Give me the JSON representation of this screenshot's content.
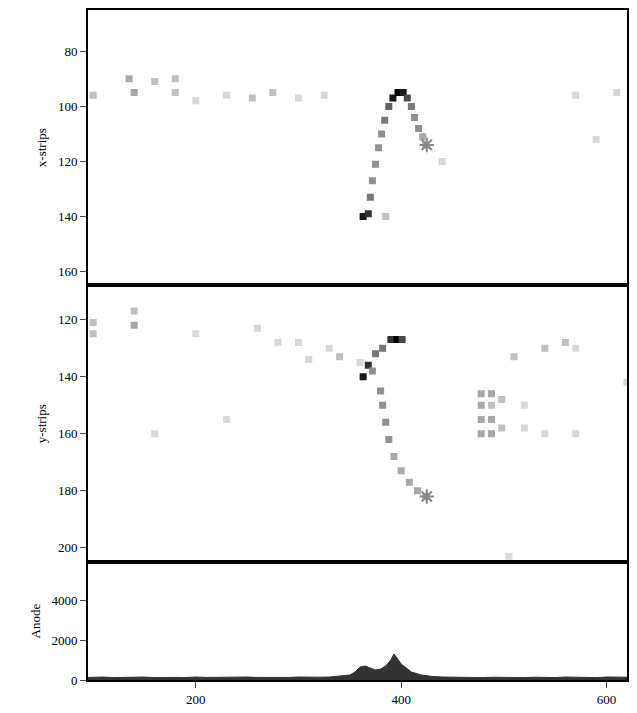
{
  "chart_data": [
    {
      "type": "heatmap",
      "ylabel": "x-strips",
      "xlim": [
        95,
        620
      ],
      "ylim": [
        165,
        65
      ],
      "yticks": [
        80,
        100,
        120,
        140,
        160
      ],
      "tick_labels": "y",
      "cells": [
        [
          363,
          140,
          9
        ],
        [
          368,
          139,
          8
        ],
        [
          370,
          133,
          5
        ],
        [
          372,
          127,
          4
        ],
        [
          375,
          121,
          4
        ],
        [
          378,
          115,
          4
        ],
        [
          381,
          110,
          4
        ],
        [
          384,
          105,
          5
        ],
        [
          388,
          100,
          6
        ],
        [
          392,
          97,
          9
        ],
        [
          397,
          95,
          10
        ],
        [
          402,
          95,
          9
        ],
        [
          406,
          97,
          7
        ],
        [
          410,
          100,
          5
        ],
        [
          413,
          104,
          4
        ],
        [
          417,
          108,
          4
        ],
        [
          421,
          111,
          3
        ],
        [
          424,
          114,
          3
        ],
        [
          100,
          96,
          2
        ],
        [
          135,
          90,
          3
        ],
        [
          140,
          95,
          3
        ],
        [
          160,
          91,
          2
        ],
        [
          180,
          90,
          2
        ],
        [
          180,
          95,
          2
        ],
        [
          200,
          98,
          1
        ],
        [
          230,
          96,
          1
        ],
        [
          255,
          97,
          2
        ],
        [
          275,
          95,
          2
        ],
        [
          300,
          97,
          1
        ],
        [
          325,
          96,
          1
        ],
        [
          440,
          120,
          1
        ],
        [
          570,
          96,
          1
        ],
        [
          590,
          112,
          1
        ],
        [
          610,
          95,
          1
        ],
        [
          385,
          140,
          2
        ]
      ],
      "series": [
        {
          "type": "scatter",
          "marker": "asterisk",
          "color": "#888888",
          "x": [
            425
          ],
          "values": [
            114
          ]
        }
      ]
    },
    {
      "type": "heatmap",
      "ylabel": "y-strips",
      "xlim": [
        95,
        620
      ],
      "ylim": [
        205,
        108
      ],
      "yticks": [
        120,
        140,
        160,
        180,
        200
      ],
      "tick_labels": "y",
      "cells": [
        [
          363,
          140,
          9
        ],
        [
          368,
          136,
          8
        ],
        [
          375,
          132,
          5
        ],
        [
          382,
          130,
          5
        ],
        [
          390,
          127,
          8
        ],
        [
          396,
          127,
          10
        ],
        [
          401,
          127,
          7
        ],
        [
          372,
          138,
          4
        ],
        [
          380,
          145,
          4
        ],
        [
          382,
          150,
          4
        ],
        [
          385,
          156,
          4
        ],
        [
          388,
          162,
          4
        ],
        [
          393,
          168,
          3
        ],
        [
          400,
          173,
          3
        ],
        [
          408,
          177,
          3
        ],
        [
          416,
          180,
          3
        ],
        [
          424,
          182,
          3
        ],
        [
          478,
          146,
          3
        ],
        [
          478,
          150,
          3
        ],
        [
          478,
          155,
          3
        ],
        [
          478,
          160,
          3
        ],
        [
          488,
          146,
          3
        ],
        [
          488,
          150,
          2
        ],
        [
          488,
          155,
          3
        ],
        [
          488,
          160,
          3
        ],
        [
          498,
          148,
          2
        ],
        [
          498,
          158,
          2
        ],
        [
          520,
          150,
          1
        ],
        [
          520,
          158,
          1
        ],
        [
          540,
          160,
          1
        ],
        [
          570,
          160,
          1
        ],
        [
          100,
          121,
          2
        ],
        [
          100,
          125,
          2
        ],
        [
          140,
          117,
          2
        ],
        [
          140,
          122,
          3
        ],
        [
          200,
          125,
          1
        ],
        [
          260,
          123,
          1
        ],
        [
          280,
          128,
          1
        ],
        [
          300,
          128,
          1
        ],
        [
          310,
          134,
          1
        ],
        [
          330,
          130,
          1
        ],
        [
          340,
          133,
          2
        ],
        [
          360,
          135,
          1
        ],
        [
          160,
          160,
          1
        ],
        [
          230,
          155,
          1
        ],
        [
          510,
          133,
          2
        ],
        [
          540,
          130,
          2
        ],
        [
          560,
          128,
          2
        ],
        [
          570,
          130,
          1
        ],
        [
          620,
          142,
          1
        ],
        [
          505,
          203,
          1
        ]
      ],
      "series": [
        {
          "type": "scatter",
          "marker": "asterisk",
          "color": "#888888",
          "x": [
            425
          ],
          "values": [
            182
          ]
        }
      ]
    },
    {
      "type": "area",
      "ylabel": "Anode",
      "xlim": [
        95,
        620
      ],
      "ylim": [
        0,
        5900
      ],
      "xticks": [
        200,
        400,
        600
      ],
      "yticks": [
        0,
        2000,
        4000
      ],
      "color": "#333333",
      "x": [
        95,
        110,
        120,
        130,
        140,
        150,
        160,
        170,
        180,
        190,
        200,
        210,
        220,
        230,
        240,
        250,
        260,
        270,
        280,
        290,
        300,
        310,
        320,
        330,
        340,
        350,
        355,
        360,
        365,
        370,
        375,
        380,
        385,
        390,
        393,
        396,
        400,
        405,
        410,
        420,
        430,
        440,
        450,
        460,
        470,
        480,
        490,
        500,
        510,
        520,
        530,
        540,
        550,
        560,
        570,
        580,
        590,
        600,
        610,
        620
      ],
      "values": [
        130,
        150,
        120,
        140,
        130,
        150,
        120,
        140,
        130,
        120,
        150,
        130,
        140,
        120,
        130,
        150,
        130,
        120,
        140,
        130,
        150,
        130,
        140,
        150,
        200,
        250,
        400,
        650,
        700,
        600,
        500,
        550,
        700,
        1000,
        1300,
        1100,
        800,
        600,
        400,
        250,
        180,
        150,
        140,
        130,
        150,
        120,
        140,
        130,
        150,
        120,
        140,
        130,
        120,
        150,
        130,
        140,
        120,
        150,
        130,
        140
      ]
    }
  ]
}
